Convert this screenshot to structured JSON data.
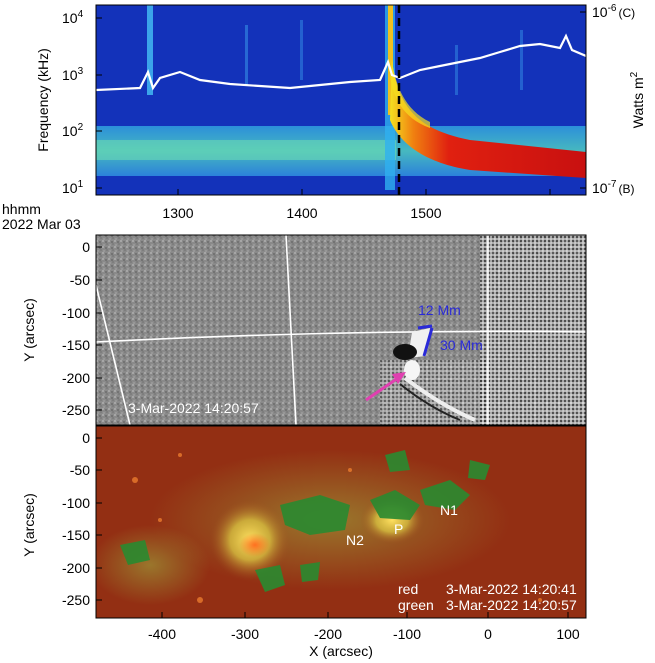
{
  "panel_top": {
    "ylabel": "Frequency (kHz)",
    "y_ticks": [
      {
        "label": "10",
        "exp": "4"
      },
      {
        "label": "10",
        "exp": "3"
      },
      {
        "label": "10",
        "exp": "2"
      },
      {
        "label": "10",
        "exp": "1"
      }
    ],
    "x_ticks": [
      "1300",
      "1400",
      "1500"
    ],
    "x_time_label_1": "hhmm",
    "x_time_label_2": "2022 Mar 03",
    "right_axis": {
      "label": "Watts m",
      "label_exp": "2",
      "top_tick": "10",
      "top_exp": "-6",
      "top_class": "(C)",
      "bottom_tick": "10",
      "bottom_exp": "-7",
      "bottom_class": "(B)"
    },
    "colors": {
      "background": "#1a3cc8",
      "burst": "#d81c10",
      "curve": "#ffffff",
      "marker": "#000000"
    }
  },
  "panel_mid": {
    "ylabel": "Y (arcsec)",
    "y_ticks": [
      "0",
      "-50",
      "-100",
      "-150",
      "-200",
      "-250"
    ],
    "timestamp": "3-Mar-2022 14:20:57",
    "scale_labels": [
      "12 Mm",
      "30 Mm"
    ],
    "colors": {
      "scale": "#2a2ad8",
      "arrow": "#e040b0"
    }
  },
  "panel_bot": {
    "ylabel": "Y (arcsec)",
    "y_ticks": [
      "0",
      "-50",
      "-100",
      "-150",
      "-200",
      "-250"
    ],
    "x_ticks": [
      "-400",
      "-300",
      "-200",
      "-100",
      "0",
      "100"
    ],
    "xlabel": "X (arcsec)",
    "region_labels": [
      "N1",
      "N2",
      "P"
    ],
    "legend": [
      {
        "channel": "red",
        "time": "3-Mar-2022 14:20:41"
      },
      {
        "channel": "green",
        "time": "3-Mar-2022 14:20:57"
      }
    ],
    "colors": {
      "base": "#8a2a10",
      "green": "#2a8a30",
      "orange": "#f08030"
    }
  }
}
